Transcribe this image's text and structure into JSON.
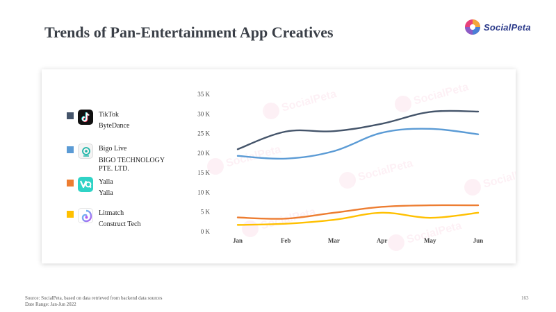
{
  "page": {
    "title": "Trends of Pan-Entertainment App Creatives",
    "page_number": "163"
  },
  "brand": {
    "name": "SocialPeta"
  },
  "legend": [
    {
      "app": "TikTok",
      "company": "ByteDance",
      "color": "#44546a",
      "icon": "tiktok-icon"
    },
    {
      "app": "Bigo Live",
      "company": "BIGO TECHNOLOGY PTE. LTD.",
      "color": "#5b9bd5",
      "icon": "bigo-live-icon"
    },
    {
      "app": "Yalla",
      "company": "Yalla",
      "color": "#ed7d31",
      "icon": "yalla-icon"
    },
    {
      "app": "Litmatch",
      "company": "Construct Tech",
      "color": "#ffc000",
      "icon": "litmatch-icon"
    }
  ],
  "footer": {
    "source": "Source: SocialPeta, based on data retrieved from backend data sources",
    "date_range": "Date Range: Jan-Jun 2022"
  },
  "chart_data": {
    "type": "line",
    "title": "Trends of Pan-Entertainment App Creatives",
    "categories": [
      "Jan",
      "Feb",
      "Mar",
      "Apr",
      "May",
      "Jun"
    ],
    "ylim": [
      0,
      35000
    ],
    "yticks": [
      0,
      5000,
      10000,
      15000,
      20000,
      25000,
      30000,
      35000
    ],
    "ytick_labels": [
      "0 K",
      "5 K",
      "10 K",
      "15 K",
      "20 K",
      "25 K",
      "30 K",
      "35 K"
    ],
    "grid": false,
    "series": [
      {
        "name": "TikTok",
        "color": "#44546a",
        "values": [
          21000,
          25500,
          25600,
          27500,
          30500,
          30600
        ]
      },
      {
        "name": "Bigo Live",
        "color": "#5b9bd5",
        "values": [
          19300,
          18600,
          20500,
          25200,
          26200,
          24800
        ]
      },
      {
        "name": "Yalla",
        "color": "#ed7d31",
        "values": [
          3600,
          3300,
          4800,
          6300,
          6700,
          6700
        ]
      },
      {
        "name": "Litmatch",
        "color": "#ffc000",
        "values": [
          1700,
          2000,
          3000,
          4800,
          3500,
          4800
        ]
      }
    ]
  }
}
